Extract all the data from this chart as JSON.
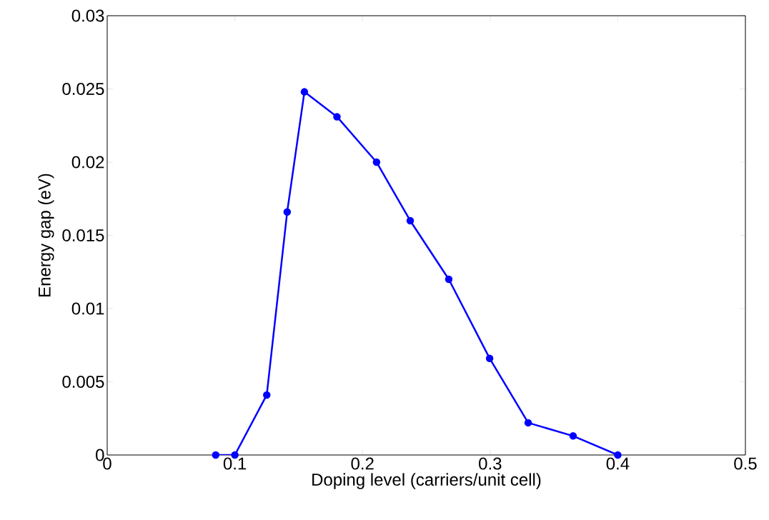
{
  "chart_data": {
    "type": "line",
    "xlabel": "Doping level (carriers/unit cell)",
    "ylabel": "Energy gap (eV)",
    "x": [
      0.085,
      0.1,
      0.125,
      0.141,
      0.1545,
      0.18,
      0.211,
      0.2374,
      0.2676,
      0.2996,
      0.3298,
      0.365,
      0.4
    ],
    "series": [
      {
        "color": "#0000ff",
        "values": [
          0,
          0,
          0.0041,
          0.0166,
          0.0248,
          0.0231,
          0.02,
          0.016,
          0.012,
          0.0066,
          0.0022,
          0.0013,
          0
        ]
      }
    ],
    "xlim": [
      0,
      0.5
    ],
    "ylim": [
      0,
      0.03
    ],
    "xticks": [
      0,
      0.1,
      0.2,
      0.3,
      0.4,
      0.5
    ],
    "yticks": [
      0,
      0.005,
      0.01,
      0.015,
      0.02,
      0.025,
      0.03
    ],
    "grid": false,
    "marker": "circle",
    "line_style": "solid"
  }
}
